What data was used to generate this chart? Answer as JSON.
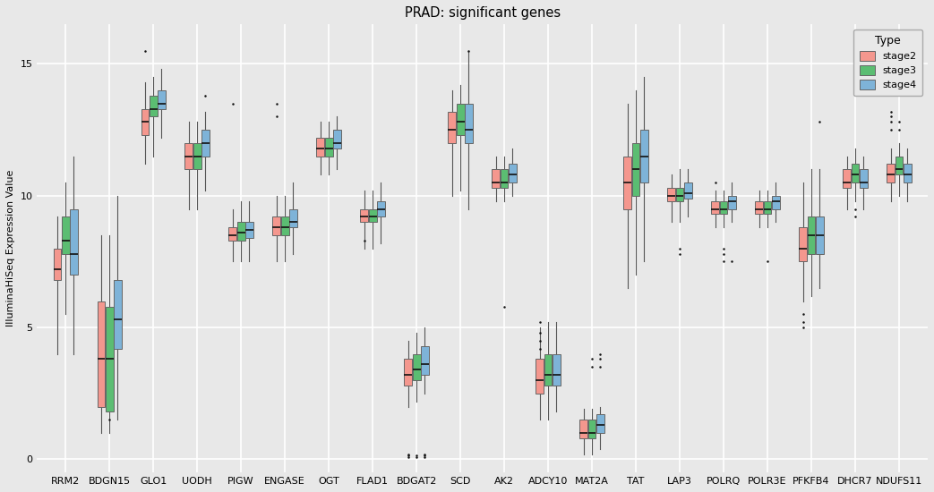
{
  "title": "PRAD: significant genes",
  "ylabel": "IlluminaHiSeq Expression Value",
  "background_color": "#E8E8E8",
  "colors": {
    "stage2": "#F4978E",
    "stage3": "#5BBD72",
    "stage4": "#7EB3D8"
  },
  "genes": [
    "RRM2",
    "BDGN15",
    "GLO1",
    "UODH",
    "PIGW",
    "ENGASE",
    "OGT",
    "FLAD1",
    "BDGAT2",
    "SCD",
    "AK2",
    "ADCY10",
    "MAT2A",
    "TAT",
    "LAP3",
    "POLRQ",
    "POLR3E",
    "PFKFB4",
    "DHCR7",
    "NDUFS11"
  ],
  "box_data": {
    "RRM2": {
      "stage2": {
        "whislo": 4.0,
        "q1": 6.8,
        "med": 7.2,
        "q3": 8.0,
        "whishi": 9.2
      },
      "stage3": {
        "whislo": 5.5,
        "q1": 7.8,
        "med": 8.3,
        "q3": 9.2,
        "whishi": 10.5
      },
      "stage4": {
        "whislo": 4.0,
        "q1": 7.0,
        "med": 7.8,
        "q3": 9.5,
        "whishi": 11.5
      }
    },
    "BDGN15": {
      "stage2": {
        "whislo": 1.0,
        "q1": 2.0,
        "med": 3.8,
        "q3": 6.0,
        "whishi": 8.5
      },
      "stage3": {
        "whislo": 1.0,
        "q1": 1.8,
        "med": 3.8,
        "q3": 5.8,
        "whishi": 8.5
      },
      "stage4": {
        "whislo": 1.5,
        "q1": 4.2,
        "med": 5.3,
        "q3": 6.8,
        "whishi": 10.0
      }
    },
    "GLO1": {
      "stage2": {
        "whislo": 11.2,
        "q1": 12.3,
        "med": 12.8,
        "q3": 13.3,
        "whishi": 14.3
      },
      "stage3": {
        "whislo": 11.5,
        "q1": 13.0,
        "med": 13.3,
        "q3": 13.8,
        "whishi": 14.5
      },
      "stage4": {
        "whislo": 12.2,
        "q1": 13.3,
        "med": 13.5,
        "q3": 14.0,
        "whishi": 14.8
      }
    },
    "UODH": {
      "stage2": {
        "whislo": 9.5,
        "q1": 11.0,
        "med": 11.5,
        "q3": 12.0,
        "whishi": 12.8
      },
      "stage3": {
        "whislo": 9.5,
        "q1": 11.0,
        "med": 11.5,
        "q3": 12.0,
        "whishi": 12.8
      },
      "stage4": {
        "whislo": 10.2,
        "q1": 11.5,
        "med": 12.0,
        "q3": 12.5,
        "whishi": 13.2
      }
    },
    "PIGW": {
      "stage2": {
        "whislo": 7.5,
        "q1": 8.3,
        "med": 8.5,
        "q3": 8.8,
        "whishi": 9.5
      },
      "stage3": {
        "whislo": 7.5,
        "q1": 8.3,
        "med": 8.6,
        "q3": 9.0,
        "whishi": 9.8
      },
      "stage4": {
        "whislo": 7.5,
        "q1": 8.4,
        "med": 8.7,
        "q3": 9.0,
        "whishi": 9.8
      }
    },
    "ENGASE": {
      "stage2": {
        "whislo": 7.5,
        "q1": 8.5,
        "med": 8.8,
        "q3": 9.2,
        "whishi": 10.0
      },
      "stage3": {
        "whislo": 7.5,
        "q1": 8.5,
        "med": 8.8,
        "q3": 9.2,
        "whishi": 10.0
      },
      "stage4": {
        "whislo": 7.8,
        "q1": 8.8,
        "med": 9.0,
        "q3": 9.5,
        "whishi": 10.5
      }
    },
    "OGT": {
      "stage2": {
        "whislo": 10.8,
        "q1": 11.5,
        "med": 11.8,
        "q3": 12.2,
        "whishi": 12.8
      },
      "stage3": {
        "whislo": 10.8,
        "q1": 11.5,
        "med": 11.8,
        "q3": 12.2,
        "whishi": 12.8
      },
      "stage4": {
        "whislo": 11.0,
        "q1": 11.8,
        "med": 12.0,
        "q3": 12.5,
        "whishi": 13.0
      }
    },
    "FLAD1": {
      "stage2": {
        "whislo": 8.0,
        "q1": 9.0,
        "med": 9.2,
        "q3": 9.5,
        "whishi": 10.2
      },
      "stage3": {
        "whislo": 8.0,
        "q1": 9.0,
        "med": 9.2,
        "q3": 9.5,
        "whishi": 10.2
      },
      "stage4": {
        "whislo": 8.2,
        "q1": 9.2,
        "med": 9.5,
        "q3": 9.8,
        "whishi": 10.5
      }
    },
    "BDGAT2": {
      "stage2": {
        "whislo": 2.0,
        "q1": 2.8,
        "med": 3.2,
        "q3": 3.8,
        "whishi": 4.5
      },
      "stage3": {
        "whislo": 2.2,
        "q1": 3.0,
        "med": 3.4,
        "q3": 4.0,
        "whishi": 4.8
      },
      "stage4": {
        "whislo": 2.5,
        "q1": 3.2,
        "med": 3.6,
        "q3": 4.3,
        "whishi": 5.0
      }
    },
    "SCD": {
      "stage2": {
        "whislo": 10.0,
        "q1": 12.0,
        "med": 12.5,
        "q3": 13.2,
        "whishi": 14.0
      },
      "stage3": {
        "whislo": 10.2,
        "q1": 12.3,
        "med": 12.8,
        "q3": 13.5,
        "whishi": 14.2
      },
      "stage4": {
        "whislo": 9.5,
        "q1": 12.0,
        "med": 12.5,
        "q3": 13.5,
        "whishi": 15.5
      }
    },
    "AK2": {
      "stage2": {
        "whislo": 9.8,
        "q1": 10.3,
        "med": 10.5,
        "q3": 11.0,
        "whishi": 11.5
      },
      "stage3": {
        "whislo": 9.8,
        "q1": 10.3,
        "med": 10.5,
        "q3": 11.0,
        "whishi": 11.5
      },
      "stage4": {
        "whislo": 10.0,
        "q1": 10.5,
        "med": 10.8,
        "q3": 11.2,
        "whishi": 11.8
      }
    },
    "ADCY10": {
      "stage2": {
        "whislo": 1.5,
        "q1": 2.5,
        "med": 3.0,
        "q3": 3.8,
        "whishi": 5.0
      },
      "stage3": {
        "whislo": 1.5,
        "q1": 2.8,
        "med": 3.2,
        "q3": 4.0,
        "whishi": 5.2
      },
      "stage4": {
        "whislo": 1.8,
        "q1": 2.8,
        "med": 3.2,
        "q3": 4.0,
        "whishi": 5.2
      }
    },
    "MAT2A": {
      "stage2": {
        "whislo": 0.2,
        "q1": 0.8,
        "med": 1.0,
        "q3": 1.5,
        "whishi": 1.9
      },
      "stage3": {
        "whislo": 0.2,
        "q1": 0.8,
        "med": 1.0,
        "q3": 1.5,
        "whishi": 1.9
      },
      "stage4": {
        "whislo": 0.4,
        "q1": 1.0,
        "med": 1.3,
        "q3": 1.7,
        "whishi": 2.0
      }
    },
    "TAT": {
      "stage2": {
        "whislo": 6.5,
        "q1": 9.5,
        "med": 10.5,
        "q3": 11.5,
        "whishi": 13.5
      },
      "stage3": {
        "whislo": 7.0,
        "q1": 10.0,
        "med": 11.0,
        "q3": 12.0,
        "whishi": 14.0
      },
      "stage4": {
        "whislo": 7.5,
        "q1": 10.5,
        "med": 11.5,
        "q3": 12.5,
        "whishi": 14.5
      }
    },
    "LAP3": {
      "stage2": {
        "whislo": 9.0,
        "q1": 9.8,
        "med": 10.0,
        "q3": 10.3,
        "whishi": 10.8
      },
      "stage3": {
        "whislo": 9.0,
        "q1": 9.8,
        "med": 10.0,
        "q3": 10.3,
        "whishi": 11.0
      },
      "stage4": {
        "whislo": 9.2,
        "q1": 9.9,
        "med": 10.1,
        "q3": 10.5,
        "whishi": 11.0
      }
    },
    "POLRQ": {
      "stage2": {
        "whislo": 8.8,
        "q1": 9.3,
        "med": 9.5,
        "q3": 9.8,
        "whishi": 10.2
      },
      "stage3": {
        "whislo": 8.8,
        "q1": 9.3,
        "med": 9.5,
        "q3": 9.8,
        "whishi": 10.2
      },
      "stage4": {
        "whislo": 9.0,
        "q1": 9.5,
        "med": 9.8,
        "q3": 10.0,
        "whishi": 10.5
      }
    },
    "POLR3E": {
      "stage2": {
        "whislo": 8.8,
        "q1": 9.3,
        "med": 9.5,
        "q3": 9.8,
        "whishi": 10.2
      },
      "stage3": {
        "whislo": 8.8,
        "q1": 9.3,
        "med": 9.5,
        "q3": 9.8,
        "whishi": 10.2
      },
      "stage4": {
        "whislo": 9.0,
        "q1": 9.5,
        "med": 9.8,
        "q3": 10.0,
        "whishi": 10.5
      }
    },
    "PFKFB4": {
      "stage2": {
        "whislo": 6.0,
        "q1": 7.5,
        "med": 8.0,
        "q3": 8.8,
        "whishi": 10.5
      },
      "stage3": {
        "whislo": 6.2,
        "q1": 7.8,
        "med": 8.5,
        "q3": 9.2,
        "whishi": 11.0
      },
      "stage4": {
        "whislo": 6.5,
        "q1": 7.8,
        "med": 8.5,
        "q3": 9.2,
        "whishi": 11.0
      }
    },
    "DHCR7": {
      "stage2": {
        "whislo": 9.5,
        "q1": 10.3,
        "med": 10.5,
        "q3": 11.0,
        "whishi": 11.5
      },
      "stage3": {
        "whislo": 9.8,
        "q1": 10.5,
        "med": 10.8,
        "q3": 11.2,
        "whishi": 11.8
      },
      "stage4": {
        "whislo": 9.5,
        "q1": 10.3,
        "med": 10.5,
        "q3": 11.0,
        "whishi": 11.5
      }
    },
    "NDUFS11": {
      "stage2": {
        "whislo": 9.8,
        "q1": 10.5,
        "med": 10.8,
        "q3": 11.2,
        "whishi": 11.8
      },
      "stage3": {
        "whislo": 10.0,
        "q1": 10.8,
        "med": 11.0,
        "q3": 11.5,
        "whishi": 12.0
      },
      "stage4": {
        "whislo": 9.8,
        "q1": 10.5,
        "med": 10.8,
        "q3": 11.2,
        "whishi": 11.8
      }
    }
  },
  "outliers": {
    "RRM2": {
      "stage2": [],
      "stage3": [],
      "stage4": []
    },
    "BDGN15": {
      "stage2": [],
      "stage3": [
        1.5
      ],
      "stage4": []
    },
    "GLO1": {
      "stage2": [
        15.5
      ],
      "stage3": [],
      "stage4": []
    },
    "UODH": {
      "stage2": [],
      "stage3": [],
      "stage4": [
        13.8
      ]
    },
    "PIGW": {
      "stage2": [
        13.5
      ],
      "stage3": [],
      "stage4": []
    },
    "ENGASE": {
      "stage2": [
        13.0,
        13.5
      ],
      "stage3": [],
      "stage4": []
    },
    "OGT": {
      "stage2": [],
      "stage3": [],
      "stage4": []
    },
    "FLAD1": {
      "stage2": [
        8.3
      ],
      "stage3": [],
      "stage4": []
    },
    "BDGAT2": {
      "stage2": [
        0.1,
        0.15,
        0.2
      ],
      "stage3": [
        0.1,
        0.15
      ],
      "stage4": [
        0.1,
        0.15,
        0.2
      ]
    },
    "SCD": {
      "stage2": [],
      "stage3": [],
      "stage4": [
        15.5
      ]
    },
    "AK2": {
      "stage2": [],
      "stage3": [
        5.8
      ],
      "stage4": []
    },
    "ADCY10": {
      "stage2": [
        4.2,
        4.5,
        4.8,
        5.2
      ],
      "stage3": [],
      "stage4": []
    },
    "MAT2A": {
      "stage2": [],
      "stage3": [
        3.5,
        3.8
      ],
      "stage4": [
        3.5,
        3.8,
        4.0
      ]
    },
    "TAT": {
      "stage2": [],
      "stage3": [],
      "stage4": []
    },
    "LAP3": {
      "stage2": [],
      "stage3": [
        7.8,
        8.0
      ],
      "stage4": []
    },
    "POLRQ": {
      "stage2": [
        10.5
      ],
      "stage3": [
        7.5,
        7.8,
        8.0
      ],
      "stage4": [
        7.5
      ]
    },
    "POLR3E": {
      "stage2": [],
      "stage3": [
        7.5
      ],
      "stage4": []
    },
    "PFKFB4": {
      "stage2": [
        5.0,
        5.2,
        5.5
      ],
      "stage3": [],
      "stage4": [
        12.8
      ]
    },
    "DHCR7": {
      "stage2": [],
      "stage3": [
        9.2,
        9.5
      ],
      "stage4": []
    },
    "NDUFS11": {
      "stage2": [
        12.5,
        12.8,
        13.0,
        13.2
      ],
      "stage3": [
        12.5,
        12.8
      ],
      "stage4": []
    }
  },
  "ylim": [
    -0.5,
    16.5
  ],
  "yticks": [
    0,
    5,
    10,
    15
  ]
}
